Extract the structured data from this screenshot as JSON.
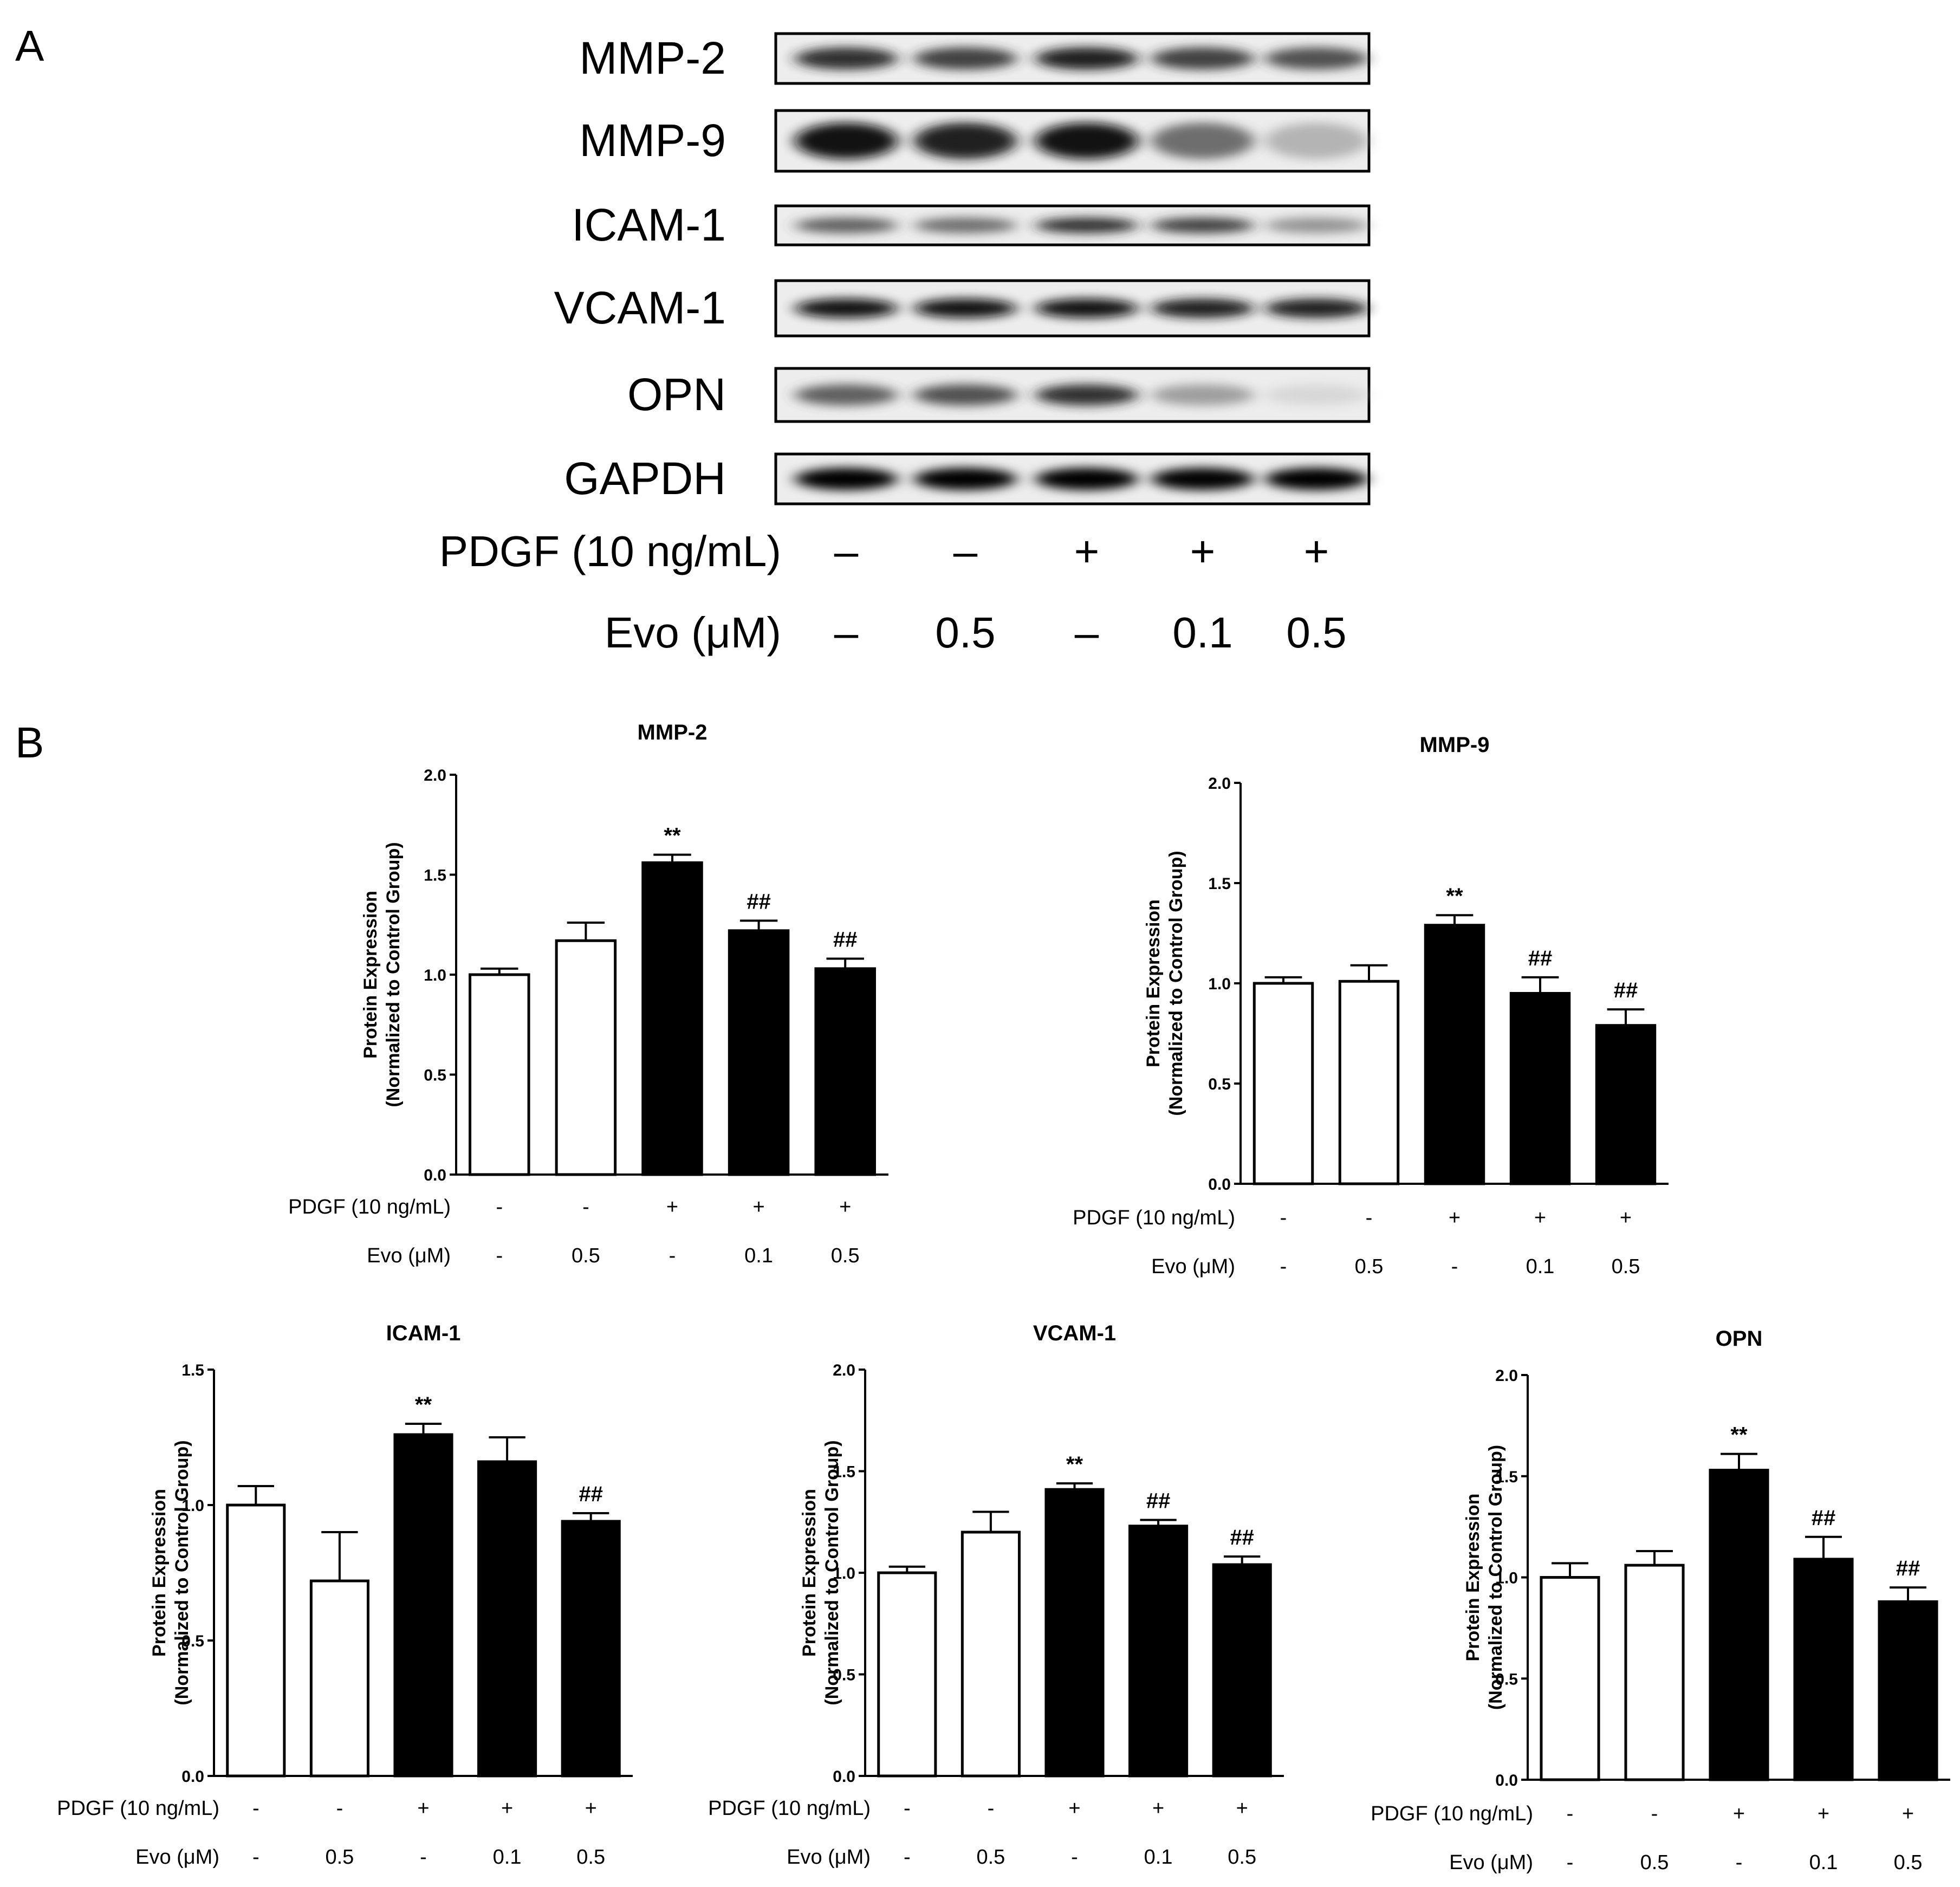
{
  "panels": {
    "a_label": "A",
    "b_label": "B"
  },
  "blot": {
    "lanes": 5,
    "rows": [
      {
        "label": "MMP-2",
        "intensity": [
          0.85,
          0.8,
          0.9,
          0.8,
          0.75
        ],
        "band_height": 0.45
      },
      {
        "label": "MMP-9",
        "intensity": [
          0.95,
          0.9,
          0.95,
          0.65,
          0.35
        ],
        "band_height": 0.6
      },
      {
        "label": "ICAM-1",
        "intensity": [
          0.7,
          0.65,
          0.85,
          0.8,
          0.5
        ],
        "band_height": 0.4
      },
      {
        "label": "VCAM-1",
        "intensity": [
          0.95,
          0.95,
          0.95,
          0.9,
          0.9
        ],
        "band_height": 0.35
      },
      {
        "label": "OPN",
        "intensity": [
          0.7,
          0.75,
          0.85,
          0.45,
          0.15
        ],
        "band_height": 0.4
      },
      {
        "label": "GAPDH",
        "intensity": [
          1.0,
          1.0,
          1.0,
          0.98,
          1.0
        ],
        "band_height": 0.45
      }
    ],
    "treatments": [
      {
        "label": "PDGF (10 ng/mL)",
        "values": [
          "–",
          "–",
          "+",
          "+",
          "+"
        ]
      },
      {
        "label": "Evo (μM)",
        "values": [
          "–",
          "0.5",
          "–",
          "0.1",
          "0.5"
        ]
      }
    ]
  },
  "chart_data": [
    {
      "type": "bar",
      "title": "MMP-2",
      "ylabel": [
        "Protein Expression",
        "(Normalized to Control Group)"
      ],
      "ylim": [
        0,
        2.0
      ],
      "yticks": [
        "0.0",
        "0.5",
        "1.0",
        "1.5",
        "2.0"
      ],
      "ytick_values": [
        0,
        0.5,
        1.0,
        1.5,
        2.0
      ],
      "values": [
        1.0,
        1.17,
        1.56,
        1.22,
        1.03
      ],
      "errors": [
        0.03,
        0.09,
        0.04,
        0.05,
        0.05
      ],
      "fills": [
        "white",
        "white",
        "black",
        "black",
        "black"
      ],
      "annotations": [
        "",
        "",
        "**",
        "##",
        "##"
      ],
      "treatments": [
        {
          "label": "PDGF (10 ng/mL)",
          "values": [
            "-",
            "-",
            "+",
            "+",
            "+"
          ]
        },
        {
          "label": "Evo (μM)",
          "values": [
            "-",
            "0.5",
            "-",
            "0.1",
            "0.5"
          ]
        }
      ]
    },
    {
      "type": "bar",
      "title": "MMP-9",
      "ylabel": [
        "Protein Expression",
        "(Normalized to Control Group)"
      ],
      "ylim": [
        0,
        2.0
      ],
      "yticks": [
        "0.0",
        "0.5",
        "1.0",
        "1.5",
        "2.0"
      ],
      "ytick_values": [
        0,
        0.5,
        1.0,
        1.5,
        2.0
      ],
      "values": [
        1.0,
        1.01,
        1.29,
        0.95,
        0.79
      ],
      "errors": [
        0.03,
        0.08,
        0.05,
        0.08,
        0.08
      ],
      "fills": [
        "white",
        "white",
        "black",
        "black",
        "black"
      ],
      "annotations": [
        "",
        "",
        "**",
        "##",
        "##"
      ],
      "treatments": [
        {
          "label": "PDGF (10 ng/mL)",
          "values": [
            "-",
            "-",
            "+",
            "+",
            "+"
          ]
        },
        {
          "label": "Evo (μM)",
          "values": [
            "-",
            "0.5",
            "-",
            "0.1",
            "0.5"
          ]
        }
      ]
    },
    {
      "type": "bar",
      "title": "ICAM-1",
      "ylabel": [
        "Protein Expression",
        "(Normalized to Control Group)"
      ],
      "ylim": [
        0,
        1.5
      ],
      "yticks": [
        "0.0",
        "0.5",
        "1.0",
        "1.5"
      ],
      "ytick_values": [
        0,
        0.5,
        1.0,
        1.5
      ],
      "values": [
        1.0,
        0.72,
        1.26,
        1.16,
        0.94
      ],
      "errors": [
        0.07,
        0.18,
        0.04,
        0.09,
        0.03
      ],
      "fills": [
        "white",
        "white",
        "black",
        "black",
        "black"
      ],
      "annotations": [
        "",
        "",
        "**",
        "",
        "##"
      ],
      "treatments": [
        {
          "label": "PDGF (10 ng/mL)",
          "values": [
            "-",
            "-",
            "+",
            "+",
            "+"
          ]
        },
        {
          "label": "Evo (μM)",
          "values": [
            "-",
            "0.5",
            "-",
            "0.1",
            "0.5"
          ]
        }
      ]
    },
    {
      "type": "bar",
      "title": "VCAM-1",
      "ylabel": [
        "Protein Expression",
        "(Normalized to Control Group)"
      ],
      "ylim": [
        0,
        2.0
      ],
      "yticks": [
        "0.0",
        "0.5",
        "1.0",
        "1.5",
        "2.0"
      ],
      "ytick_values": [
        0,
        0.5,
        1.0,
        1.5,
        2.0
      ],
      "values": [
        1.0,
        1.2,
        1.41,
        1.23,
        1.04
      ],
      "errors": [
        0.03,
        0.1,
        0.03,
        0.03,
        0.04
      ],
      "fills": [
        "white",
        "white",
        "black",
        "black",
        "black"
      ],
      "annotations": [
        "",
        "",
        "**",
        "##",
        "##"
      ],
      "treatments": [
        {
          "label": "PDGF (10 ng/mL)",
          "values": [
            "-",
            "-",
            "+",
            "+",
            "+"
          ]
        },
        {
          "label": "Evo (μM)",
          "values": [
            "-",
            "0.5",
            "-",
            "0.1",
            "0.5"
          ]
        }
      ]
    },
    {
      "type": "bar",
      "title": "OPN",
      "ylabel": [
        "Protein Expression",
        "(Normalized to Control Group)"
      ],
      "ylim": [
        0,
        2.0
      ],
      "yticks": [
        "0.0",
        "0.5",
        "1.0",
        "1.5",
        "2.0"
      ],
      "ytick_values": [
        0,
        0.5,
        1.0,
        1.5,
        2.0
      ],
      "values": [
        1.0,
        1.06,
        1.53,
        1.09,
        0.88
      ],
      "errors": [
        0.07,
        0.07,
        0.08,
        0.11,
        0.07
      ],
      "fills": [
        "white",
        "white",
        "black",
        "black",
        "black"
      ],
      "annotations": [
        "",
        "",
        "**",
        "##",
        "##"
      ],
      "treatments": [
        {
          "label": "PDGF (10 ng/mL)",
          "values": [
            "-",
            "-",
            "+",
            "+",
            "+"
          ]
        },
        {
          "label": "Evo (μM)",
          "values": [
            "-",
            "0.5",
            "-",
            "0.1",
            "0.5"
          ]
        }
      ]
    }
  ]
}
